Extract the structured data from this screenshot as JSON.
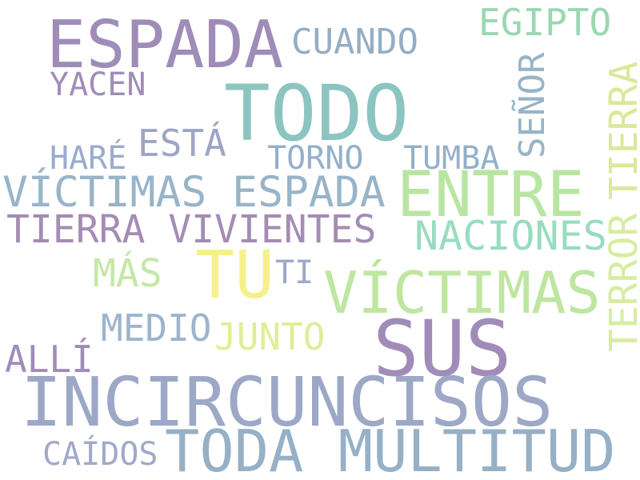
{
  "words": [
    {
      "text": "ESPADA",
      "color": "#9f8cb8"
    },
    {
      "text": "CUANDO",
      "color": "#94aec4"
    },
    {
      "text": "EGIPTO",
      "color": "#9ad8b0"
    },
    {
      "text": "YACEN",
      "color": "#a08cb8"
    },
    {
      "text": "TODO",
      "color": "#8cc4c0"
    },
    {
      "text": "SEÑOR",
      "color": "#98b4c6"
    },
    {
      "text": "TIERRA",
      "color": "#dbe89a"
    },
    {
      "text": "ESTÁ",
      "color": "#9ea5c4"
    },
    {
      "text": "HARÉ",
      "color": "#9aaccc"
    },
    {
      "text": "TORNO",
      "color": "#94b0c8"
    },
    {
      "text": "TUMBA",
      "color": "#94b0c8"
    },
    {
      "text": "VÍCTIMAS ESPADA",
      "color": "#98b4c8"
    },
    {
      "text": "ENTRE",
      "color": "#b8e6a2"
    },
    {
      "text": "TIERRA VIVIENTES",
      "color": "#a48cb4"
    },
    {
      "text": "NACIONES",
      "color": "#98dcc0"
    },
    {
      "text": "TERROR",
      "color": "#d8eca0"
    },
    {
      "text": "TU",
      "color": "#f6f08a"
    },
    {
      "text": "MÁS",
      "color": "#c4e8a6"
    },
    {
      "text": "TI",
      "color": "#a0a8c6"
    },
    {
      "text": "VÍCTIMAS",
      "color": "#bee6a0"
    },
    {
      "text": "MEDIO",
      "color": "#9cb4cc"
    },
    {
      "text": "JUNTO",
      "color": "#e2ec98"
    },
    {
      "text": "SUS",
      "color": "#a08cb8"
    },
    {
      "text": "ALLÍ",
      "color": "#a08cb8"
    },
    {
      "text": "INCIRCUNCISOS",
      "color": "#9ca8c6"
    },
    {
      "text": "CAÍDOS",
      "color": "#a2a8c8"
    },
    {
      "text": "TODA MULTITUD",
      "color": "#96b0c6"
    }
  ]
}
